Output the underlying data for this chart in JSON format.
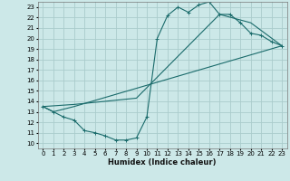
{
  "xlabel": "Humidex (Indice chaleur)",
  "bg_color": "#cce8e8",
  "grid_color": "#aacccc",
  "line_color": "#1a6b6b",
  "xlim": [
    -0.5,
    23.5
  ],
  "ylim": [
    9.5,
    23.5
  ],
  "xticks": [
    0,
    1,
    2,
    3,
    4,
    5,
    6,
    7,
    8,
    9,
    10,
    11,
    12,
    13,
    14,
    15,
    16,
    17,
    18,
    19,
    20,
    21,
    22,
    23
  ],
  "yticks": [
    10,
    11,
    12,
    13,
    14,
    15,
    16,
    17,
    18,
    19,
    20,
    21,
    22,
    23
  ],
  "line1_x": [
    0,
    1,
    2,
    3,
    4,
    5,
    6,
    7,
    8,
    9,
    10,
    11,
    12,
    13,
    14,
    15,
    16,
    17,
    18,
    19,
    20,
    21,
    22,
    23
  ],
  "line1_y": [
    13.5,
    13.0,
    12.5,
    12.2,
    11.2,
    11.0,
    10.7,
    10.3,
    10.3,
    10.5,
    12.5,
    20.0,
    22.2,
    23.0,
    22.5,
    23.2,
    23.5,
    22.3,
    22.3,
    21.5,
    20.5,
    20.3,
    19.7,
    19.3
  ],
  "line2_x": [
    0,
    1,
    3,
    23
  ],
  "line2_y": [
    13.5,
    13.0,
    13.5,
    19.3
  ],
  "line3_x": [
    0,
    3,
    9,
    17,
    20,
    23
  ],
  "line3_y": [
    13.5,
    13.7,
    14.3,
    22.3,
    21.5,
    19.3
  ]
}
